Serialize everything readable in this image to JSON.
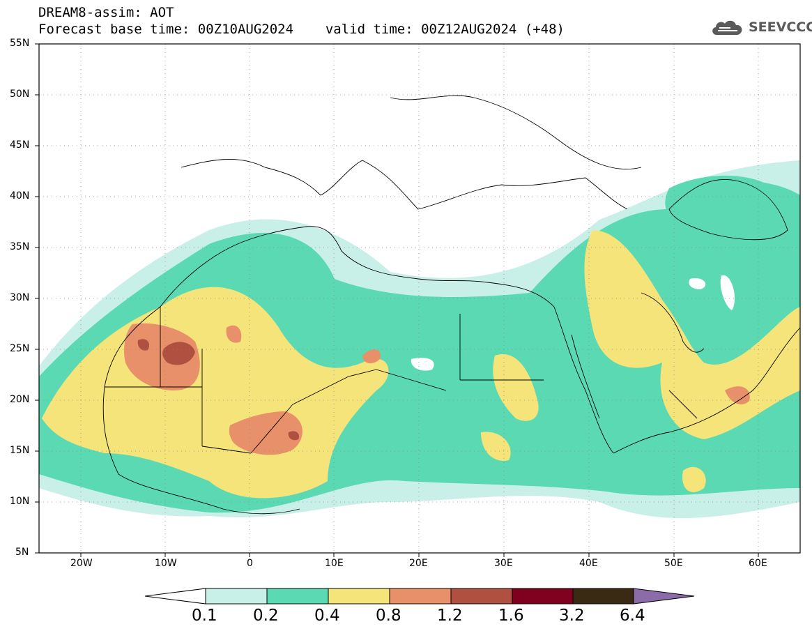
{
  "header": {
    "line1": "DREAM8-assim: AOT",
    "line2_base_label": "Forecast base time: 00Z10AUG2024",
    "line2_valid_label": "valid time: 00Z12AUG2024 (+48)"
  },
  "logo": {
    "text": "SEEVCCC",
    "icon": "cloud-icon"
  },
  "map": {
    "lat_ticks": [
      "55N",
      "50N",
      "45N",
      "40N",
      "35N",
      "30N",
      "25N",
      "20N",
      "15N",
      "10N",
      "5N"
    ],
    "lon_ticks": [
      "20W",
      "10W",
      "0",
      "10E",
      "20E",
      "30E",
      "40E",
      "50E",
      "60E"
    ],
    "extent": {
      "lon_min": -25,
      "lon_max": 65,
      "lat_min": 5,
      "lat_max": 55
    }
  },
  "colorbar": {
    "labels": [
      "0.1",
      "0.2",
      "0.4",
      "0.8",
      "1.2",
      "1.6",
      "3.2",
      "6.4"
    ],
    "colors": [
      "#ffffff",
      "#c8f0e8",
      "#5ad9b2",
      "#f5e47a",
      "#e8906a",
      "#b05040",
      "#800020",
      "#3a2a14",
      "#8c6ca8"
    ]
  }
}
